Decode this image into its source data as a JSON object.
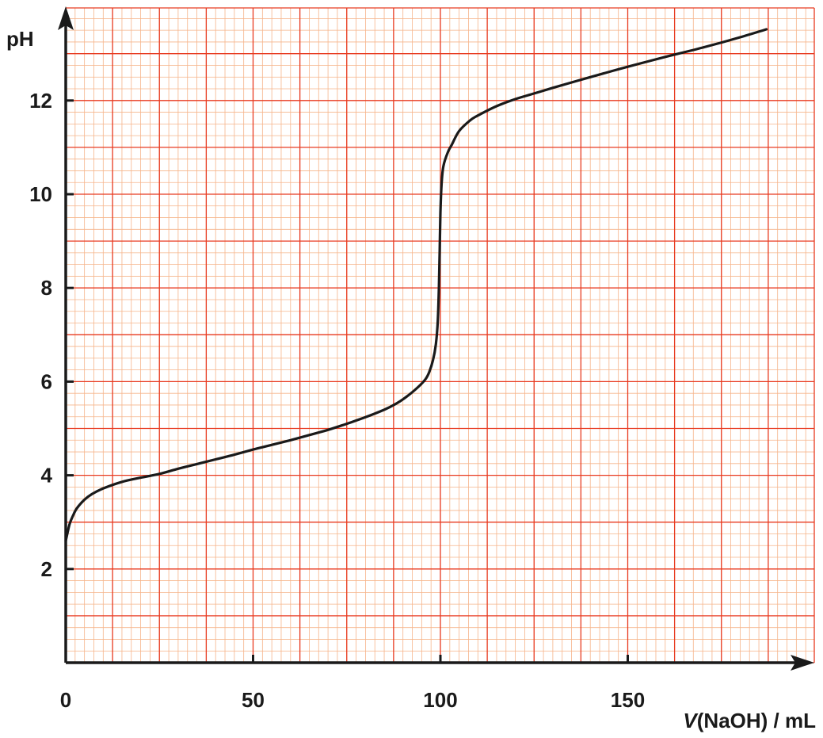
{
  "chart_data": {
    "type": "line",
    "title": "",
    "xlabel_italic": "V",
    "xlabel_rest": "(NaOH) / mL",
    "ylabel": "pH",
    "xlim": [
      0,
      200
    ],
    "ylim": [
      0,
      14
    ],
    "x_ticks": [
      0,
      50,
      100,
      150
    ],
    "y_ticks": [
      2,
      4,
      6,
      8,
      10,
      12
    ],
    "grid": true,
    "grid_minor_x": 2.5,
    "grid_minor_y": 0.25,
    "grid_major_x": 12.5,
    "grid_major_y": 1,
    "colors": {
      "grid_minor": "#f6b48a",
      "grid_major": "#e83a20",
      "axis": "#1a1a1a",
      "curve": "#1a1a1a"
    },
    "series": [
      {
        "points": [
          [
            0,
            2.6
          ],
          [
            1,
            2.95
          ],
          [
            2,
            3.15
          ],
          [
            3,
            3.3
          ],
          [
            5,
            3.48
          ],
          [
            7,
            3.6
          ],
          [
            10,
            3.72
          ],
          [
            15,
            3.86
          ],
          [
            20,
            3.95
          ],
          [
            25,
            4.03
          ],
          [
            30,
            4.14
          ],
          [
            35,
            4.24
          ],
          [
            40,
            4.34
          ],
          [
            45,
            4.44
          ],
          [
            50,
            4.55
          ],
          [
            55,
            4.65
          ],
          [
            60,
            4.75
          ],
          [
            65,
            4.86
          ],
          [
            70,
            4.97
          ],
          [
            75,
            5.1
          ],
          [
            80,
            5.24
          ],
          [
            85,
            5.4
          ],
          [
            88,
            5.52
          ],
          [
            91,
            5.68
          ],
          [
            94,
            5.88
          ],
          [
            96,
            6.05
          ],
          [
            97,
            6.2
          ],
          [
            98,
            6.45
          ],
          [
            98.8,
            6.8
          ],
          [
            99.3,
            7.3
          ],
          [
            99.6,
            8.0
          ],
          [
            99.8,
            8.8
          ],
          [
            100,
            9.6
          ],
          [
            100.3,
            10.2
          ],
          [
            100.8,
            10.6
          ],
          [
            102,
            10.9
          ],
          [
            103,
            11.05
          ],
          [
            105,
            11.35
          ],
          [
            108,
            11.58
          ],
          [
            110,
            11.68
          ],
          [
            115,
            11.88
          ],
          [
            120,
            12.03
          ],
          [
            125,
            12.15
          ],
          [
            130,
            12.27
          ],
          [
            140,
            12.5
          ],
          [
            150,
            12.72
          ],
          [
            160,
            12.93
          ],
          [
            170,
            13.13
          ],
          [
            180,
            13.35
          ],
          [
            187,
            13.52
          ]
        ]
      }
    ]
  }
}
